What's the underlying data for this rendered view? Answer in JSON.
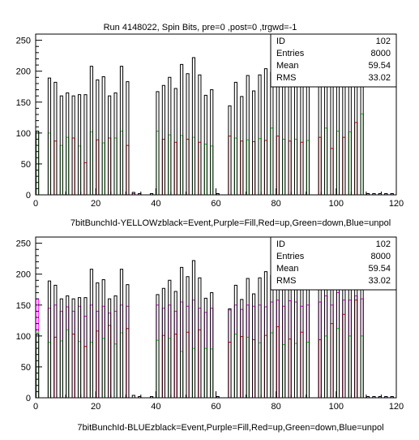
{
  "title": "Run 4148022, Spin Bits, pre=0 ,post=0 ,trgwd=-1",
  "colors": {
    "event": "#000000",
    "fill": "#ff00ff",
    "up": "#ff0000",
    "down": "#00ee00",
    "unpol": "#0000ff"
  },
  "chart_data": [
    {
      "type": "bar",
      "name": "yellow",
      "xlabel": "7bitBunchId-YELLOWzblack=Event,Purple=Fill,Red=up,Green=down,Blue=unpol",
      "xlim": [
        0,
        120
      ],
      "ylim": [
        0,
        260
      ],
      "xticks": [
        "0",
        "20",
        "40",
        "60",
        "80",
        "100",
        "120"
      ],
      "yticks": [
        "0",
        "50",
        "100",
        "150",
        "200",
        "250"
      ],
      "stats": {
        "rows": [
          {
            "label": "ID",
            "value": "102"
          },
          {
            "label": "Entries",
            "value": "8000"
          },
          {
            "label": "Mean",
            "value": "59.54"
          },
          {
            "label": "RMS",
            "value": "33.02"
          }
        ]
      },
      "bins": [
        0,
        4,
        6,
        8,
        10,
        12,
        14,
        16,
        18,
        20,
        22,
        24,
        26,
        28,
        30,
        32,
        34,
        38,
        40,
        42,
        44,
        46,
        48,
        50,
        52,
        54,
        56,
        58,
        60,
        64,
        66,
        68,
        70,
        72,
        74,
        76,
        78,
        80,
        82,
        84,
        86,
        88,
        90,
        94,
        96,
        98,
        100,
        102,
        104,
        106,
        108,
        110,
        112,
        114,
        116,
        118
      ],
      "event": [
        103,
        189,
        182,
        160,
        165,
        160,
        162,
        162,
        208,
        186,
        191,
        160,
        165,
        208,
        183,
        4,
        2,
        2,
        167,
        177,
        190,
        172,
        211,
        196,
        222,
        194,
        161,
        170,
        2,
        144,
        182,
        159,
        193,
        168,
        194,
        204,
        198,
        221,
        213,
        228,
        205,
        175,
        176,
        201,
        226,
        181,
        222,
        239,
        207,
        222,
        193,
        2,
        2,
        2,
        2,
        2
      ],
      "fill": [
        0,
        0,
        0,
        0,
        0,
        0,
        0,
        0,
        0,
        0,
        0,
        0,
        0,
        0,
        0,
        2,
        2,
        0,
        0,
        0,
        0,
        0,
        0,
        0,
        0,
        0,
        0,
        0,
        0,
        0,
        0,
        0,
        0,
        0,
        0,
        0,
        0,
        0,
        0,
        0,
        0,
        0,
        0,
        0,
        0,
        0,
        0,
        0,
        0,
        0,
        0,
        2,
        0,
        0,
        0,
        0
      ],
      "up": [
        0,
        0,
        87,
        0,
        0,
        92,
        0,
        52,
        0,
        89,
        0,
        92,
        0,
        0,
        80,
        0,
        0,
        0,
        0,
        90,
        0,
        85,
        0,
        90,
        0,
        85,
        0,
        0,
        0,
        95,
        0,
        87,
        0,
        86,
        0,
        88,
        0,
        95,
        0,
        87,
        0,
        85,
        0,
        93,
        0,
        75,
        0,
        93,
        0,
        117,
        0,
        0,
        0,
        0,
        0,
        0
      ],
      "down": [
        103,
        100,
        0,
        80,
        93,
        0,
        79,
        0,
        102,
        0,
        84,
        0,
        92,
        103,
        0,
        0,
        0,
        0,
        103,
        0,
        97,
        0,
        96,
        0,
        93,
        0,
        82,
        79,
        0,
        0,
        92,
        0,
        89,
        0,
        91,
        0,
        108,
        0,
        90,
        0,
        90,
        0,
        88,
        0,
        108,
        0,
        103,
        0,
        102,
        0,
        131,
        0,
        0,
        0,
        0,
        0
      ],
      "unpol": [
        0,
        0,
        0,
        0,
        0,
        0,
        0,
        0,
        0,
        0,
        0,
        0,
        0,
        0,
        0,
        0,
        0,
        2,
        0,
        0,
        0,
        0,
        0,
        0,
        0,
        0,
        0,
        0,
        2,
        0,
        0,
        0,
        0,
        0,
        0,
        0,
        0,
        0,
        0,
        0,
        0,
        0,
        0,
        0,
        0,
        0,
        0,
        0,
        0,
        0,
        0,
        0,
        2,
        2,
        2,
        2
      ]
    },
    {
      "type": "bar",
      "name": "blue",
      "xlabel": "7bitBunchId-BLUEzblack=Event,Purple=Fill,Red=up,Green=down,Blue=unpol",
      "xlim": [
        0,
        120
      ],
      "ylim": [
        0,
        260
      ],
      "xticks": [
        "0",
        "20",
        "40",
        "60",
        "80",
        "100",
        "120"
      ],
      "yticks": [
        "0",
        "50",
        "100",
        "150",
        "200",
        "250"
      ],
      "stats": {
        "rows": [
          {
            "label": "ID",
            "value": "102"
          },
          {
            "label": "Entries",
            "value": "8000"
          },
          {
            "label": "Mean",
            "value": "59.54"
          },
          {
            "label": "RMS",
            "value": "33.02"
          }
        ]
      },
      "bins": [
        0,
        4,
        6,
        8,
        10,
        12,
        14,
        16,
        18,
        20,
        22,
        24,
        26,
        28,
        30,
        32,
        34,
        38,
        40,
        42,
        44,
        46,
        48,
        50,
        52,
        54,
        56,
        58,
        60,
        64,
        66,
        68,
        70,
        72,
        74,
        76,
        78,
        80,
        82,
        84,
        86,
        88,
        90,
        94,
        96,
        98,
        100,
        102,
        104,
        106,
        108,
        110,
        112,
        114,
        116,
        118
      ],
      "event": [
        103,
        189,
        182,
        160,
        165,
        160,
        162,
        162,
        208,
        186,
        191,
        160,
        165,
        208,
        183,
        4,
        2,
        2,
        167,
        177,
        190,
        172,
        211,
        196,
        222,
        194,
        161,
        170,
        2,
        144,
        182,
        159,
        193,
        168,
        194,
        204,
        198,
        221,
        213,
        228,
        205,
        175,
        176,
        201,
        226,
        181,
        222,
        239,
        207,
        222,
        193,
        2,
        2,
        2,
        2,
        2
      ],
      "fill": [
        160,
        145,
        150,
        140,
        147,
        140,
        148,
        132,
        150,
        140,
        148,
        137,
        140,
        150,
        148,
        0,
        0,
        0,
        150,
        145,
        150,
        140,
        155,
        148,
        158,
        145,
        138,
        145,
        0,
        142,
        150,
        143,
        150,
        148,
        150,
        147,
        155,
        158,
        148,
        157,
        155,
        148,
        150,
        155,
        165,
        150,
        170,
        158,
        158,
        165,
        160,
        0,
        0,
        0,
        0,
        0
      ],
      "up": [
        0,
        0,
        98,
        0,
        0,
        103,
        0,
        83,
        0,
        108,
        0,
        117,
        0,
        0,
        112,
        0,
        0,
        0,
        0,
        101,
        0,
        103,
        0,
        106,
        0,
        110,
        0,
        0,
        0,
        90,
        0,
        99,
        0,
        94,
        0,
        101,
        0,
        115,
        0,
        95,
        0,
        106,
        0,
        94,
        0,
        120,
        0,
        135,
        0,
        158,
        0,
        0,
        0,
        0,
        0,
        0
      ],
      "down": [
        105,
        90,
        0,
        92,
        110,
        0,
        91,
        0,
        90,
        0,
        96,
        0,
        87,
        105,
        0,
        0,
        0,
        0,
        93,
        0,
        96,
        0,
        75,
        0,
        80,
        0,
        80,
        79,
        0,
        0,
        103,
        0,
        98,
        0,
        89,
        0,
        105,
        0,
        86,
        0,
        88,
        0,
        90,
        0,
        100,
        0,
        112,
        0,
        100,
        0,
        100,
        0,
        0,
        0,
        0,
        0
      ],
      "unpol": [
        0,
        0,
        0,
        0,
        0,
        0,
        0,
        0,
        0,
        0,
        0,
        0,
        0,
        0,
        0,
        0,
        0,
        2,
        0,
        0,
        0,
        0,
        0,
        0,
        0,
        0,
        0,
        0,
        2,
        0,
        0,
        0,
        0,
        0,
        0,
        0,
        0,
        0,
        0,
        0,
        0,
        0,
        0,
        0,
        0,
        0,
        0,
        0,
        0,
        0,
        0,
        0,
        2,
        2,
        2,
        2
      ]
    }
  ]
}
